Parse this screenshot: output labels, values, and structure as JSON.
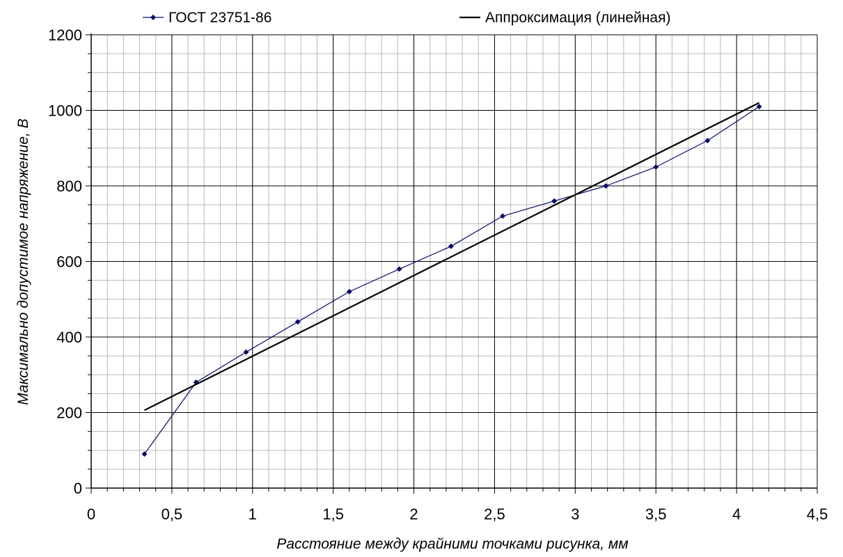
{
  "chart_data": {
    "type": "line",
    "xlabel": "Расстояние между крайними точками рисунка, мм",
    "ylabel": "Максимально допустимое напряжение, В",
    "xlim": [
      0,
      4.5
    ],
    "ylim": [
      0,
      1200
    ],
    "x_ticks": [
      "0",
      "0,5",
      "1",
      "1,5",
      "2",
      "2,5",
      "3",
      "3,5",
      "4",
      "4,5"
    ],
    "y_ticks": [
      "0",
      "200",
      "400",
      "600",
      "800",
      "1000",
      "1200"
    ],
    "grid": true,
    "legend_position": "top",
    "series": [
      {
        "name": "ГОСТ 23751-86",
        "color": "#0a0a6b",
        "marker": "diamond",
        "x": [
          0.33,
          0.65,
          0.96,
          1.28,
          1.6,
          1.91,
          2.23,
          2.55,
          2.87,
          3.19,
          3.5,
          3.82,
          4.14
        ],
        "y": [
          90,
          280,
          360,
          440,
          520,
          580,
          640,
          720,
          760,
          800,
          850,
          920,
          1010
        ]
      },
      {
        "name": "Аппроксимация (линейная)",
        "color": "#000000",
        "marker": "none",
        "x": [
          0.33,
          4.14
        ],
        "y": [
          206,
          1020
        ]
      }
    ]
  }
}
